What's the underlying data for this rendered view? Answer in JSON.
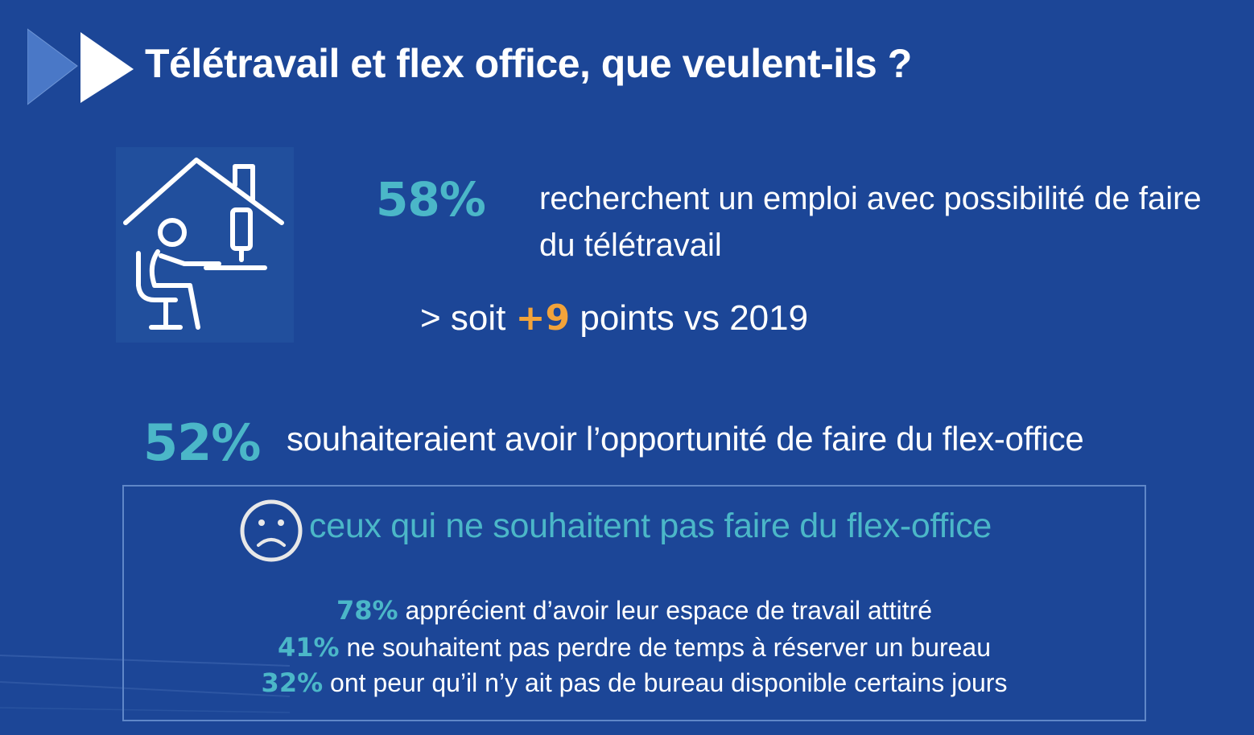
{
  "title": "Télétravail et flex office, que veulent-ils ?",
  "icons": {
    "header": "arrow-icon",
    "remote_work": "home-office-icon",
    "sad": "sad-face-icon"
  },
  "colors": {
    "background": "#1c4697",
    "accent_teal": "#4bb7c8",
    "accent_orange": "#f2a33a"
  },
  "stat_remote": {
    "percent": "58%",
    "text": "recherchent un emploi avec possibilité de faire du télétravail",
    "sub_prefix": "> soit",
    "sub_delta": "+9",
    "sub_suffix": "points vs 2019"
  },
  "stat_flex": {
    "percent": "52%",
    "text": "souhaiteraient avoir l’opportunité de faire du flex-office"
  },
  "refusers": {
    "heading": "ceux qui ne souhaitent pas faire du flex-office",
    "reasons": [
      {
        "percent": "78%",
        "text": "apprécient d’avoir leur espace de travail attitré"
      },
      {
        "percent": "41%",
        "text": "ne souhaitent pas perdre de temps à réserver un bureau"
      },
      {
        "percent": "32%",
        "text": "ont peur qu’il n’y ait pas de bureau disponible certains jours"
      }
    ]
  }
}
